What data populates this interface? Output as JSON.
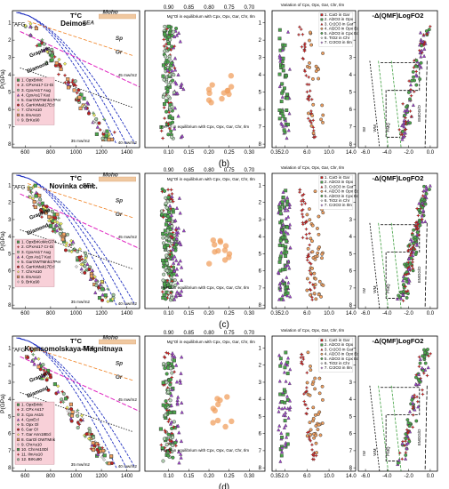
{
  "figure": {
    "captions": [
      "(b)",
      "(c)",
      "(d)"
    ],
    "colors": {
      "geotherm": "#2030c0",
      "garnet_green": "#4aa84a",
      "cpx_red": "#e01818",
      "opx_purple": "#a040d0",
      "orange": "#f0a060",
      "moho": "#f0c8a0",
      "legend_bg": "#f8d0d8",
      "legend2_bg": "#fff6b0"
    }
  },
  "chart_data": [
    {
      "type": "scatter",
      "panel": "b",
      "site": "Deimos",
      "charts": [
        {
          "name": "geotherm",
          "title": "T°C",
          "xlabel": "",
          "ylabel": "P(GPa)",
          "x_ticks": [
            "600",
            "800",
            "1000",
            "1200",
            "1400"
          ],
          "y_ticks": [
            "1",
            "2",
            "3",
            "4",
            "5",
            "6",
            "7",
            "8"
          ],
          "xlim": [
            500,
            1500
          ],
          "ylim": [
            8.2,
            0.3
          ],
          "labels": [
            "AFG",
            "Moho",
            "SEA",
            "Sp",
            "Gr",
            "Graphite",
            "Diamond",
            "45 mw/m2",
            "35 mw/m2",
            "40 mw/m2"
          ],
          "legend": [
            "1. OpxBrMc",
            "2. CPxAs17 Cr-Di",
            "3. CpxAs17 Aug",
            "4. CpxAs17 Kat",
            "5. GarOWTMnk17Per",
            "6. GarKrMak17Ecl",
            "7. ChrAs10",
            "8. IlmAs10",
            "9. BrKu90"
          ]
        },
        {
          "name": "mg-fe",
          "title": "Mg\"Ol in equilibrium with Cpx, Opx, Gar, Chr, Ilm",
          "xlabel": "Fe#Ol in equilibrium with Cpx, Opx, Gar, Chr, Ilm",
          "top_ticks": [
            "0.90",
            "0.85",
            "0.80",
            "0.75",
            "0.70"
          ],
          "x_ticks": [
            "0.10",
            "0.15",
            "0.20",
            "0.25",
            "0.30"
          ],
          "xlim": [
            0.05,
            0.33
          ],
          "ylim": [
            8.2,
            0.3
          ]
        },
        {
          "name": "variation",
          "title": "Variation of Cpx, Opx, Gar, Chr, Ilm",
          "x_ticks": [
            "0.35",
            "2.0",
            "6.0",
            "10.0",
            "14.0"
          ],
          "xlim": [
            0,
            14.5
          ],
          "ylim": [
            8.2,
            0.3
          ],
          "legend": [
            "1. CaO in Gar",
            "2. Al2O3 in Opx",
            "3. Cr2O3 in Gar",
            "4. Al2O3 in Opx Ecl",
            "5. Al2O3 in Cpx Ecl",
            "6. TiO2 in Chr",
            "7. Cr2O3 in Ilm"
          ]
        },
        {
          "name": "logfo2",
          "title": "-Δ(QMF)LogFO2",
          "x_ticks": [
            "-6.0",
            "-4.0",
            "-2.0",
            "0.0"
          ],
          "xlim": [
            -6.5,
            0.5
          ],
          "ylim": [
            8.2,
            0.3
          ],
          "labels": [
            "EMOG/D",
            "IW",
            "WM",
            "FMQ"
          ]
        }
      ]
    },
    {
      "type": "scatter",
      "panel": "c",
      "site": "Novinka conc.",
      "charts": [
        {
          "name": "geotherm",
          "title": "T°C",
          "xlabel": "",
          "ylabel": "P(GPa)",
          "x_ticks": [
            "600",
            "800",
            "1000",
            "1200",
            "1400"
          ],
          "y_ticks": [
            "1",
            "2",
            "3",
            "4",
            "5",
            "6",
            "7",
            "8"
          ],
          "xlim": [
            500,
            1500
          ],
          "ylim": [
            8.2,
            0.3
          ],
          "labels": [
            "AFG",
            "Moho",
            "SEA",
            "Sp",
            "Gr",
            "Graphite",
            "Diamond",
            "45 mw/m2",
            "35 mw/m2",
            "40 mw/m2"
          ],
          "legend": [
            "1. OpxBrKoMcGl74",
            "2. CPxAs17 Cr-Di",
            "3. CpxAs17 Aug",
            "4. Cpx As17 Kat",
            "5. GarOWTMnk17Per",
            "6. GarKrMak17Ecl",
            "7. ChrAs10",
            "8. IlmAs10",
            "9. BrKu90"
          ]
        },
        {
          "name": "mg-fe",
          "title": "Mg\"Ol in equilibrium with Cpx, Opx, Gar, Chr, Ilm",
          "xlabel": "Fe#Ol in equilibrium with Cpx, Opx, Gar, Chr, Ilm",
          "top_ticks": [
            "0.90",
            "0.85",
            "0.80",
            "0.75",
            "0.70"
          ],
          "x_ticks": [
            "0.10",
            "0.15",
            "0.20",
            "0.25",
            "0.30"
          ],
          "xlim": [
            0.05,
            0.33
          ],
          "ylim": [
            8.2,
            0.3
          ]
        },
        {
          "name": "variation",
          "title": "Variation of Cpx, Opx, Gar, Chr, Ilm",
          "x_ticks": [
            "0.35",
            "2.0",
            "6.0",
            "10.0",
            "14.0"
          ],
          "xlim": [
            0,
            14.5
          ],
          "ylim": [
            8.2,
            0.3
          ],
          "legend": [
            "1. CaO in Gar",
            "2. Al2O3 in Opx",
            "3. Cr2O3 in Gar",
            "4. Al2O3 in Opx Ecl",
            "5. Al2O3 in Cpx Ecl",
            "6. TiO2 in Chr",
            "7. Cr2O3 in Ilm"
          ]
        },
        {
          "name": "logfo2",
          "title": "-Δ(QMF)LogFO2",
          "x_ticks": [
            "-6.0",
            "-4.0",
            "-2.0",
            "0.0"
          ],
          "xlim": [
            -6.5,
            0.5
          ],
          "ylim": [
            8.2,
            0.3
          ],
          "labels": [
            "EMOG/D",
            "IW",
            "WM",
            "FMQ"
          ]
        }
      ]
    },
    {
      "type": "scatter",
      "panel": "d",
      "site": "Komsomolskaya-Magnitnaya",
      "charts": [
        {
          "name": "geotherm",
          "title": "T°C",
          "xlabel": "",
          "ylabel": "P(GPa)",
          "x_ticks": [
            "600",
            "800",
            "1000",
            "1200",
            "1400"
          ],
          "y_ticks": [
            "1",
            "2",
            "3",
            "4",
            "5",
            "6",
            "7",
            "8"
          ],
          "xlim": [
            500,
            1500
          ],
          "ylim": [
            8.2,
            0.3
          ],
          "labels": [
            "AFG",
            "Moho",
            "SEA",
            "Sp",
            "Gr",
            "Graphite",
            "Diamond",
            "45 mw/m2",
            "35 mw/m2",
            "40 mw/m2"
          ],
          "legend": [
            "1. OpxBrMc",
            "2. CPx As17",
            "3. Cpx As15",
            "4. CpxEcl",
            "5. Opx Ol",
            "6. Gar Ol",
            "7. Gar Ann18Ecl",
            "8. GarOl OWTMnk",
            "9. ChrAs10",
            "10. ChrAs10Dl",
            "11. IlmAs10",
            "12. BrKu90"
          ]
        },
        {
          "name": "mg-fe",
          "title": "Mg\"Ol in equilibrium with Cpx, Opx, Gar, Chr, Ilm",
          "xlabel": "Fe#Ol in equilibrium with Cpx, Opx, Gar, Chr, Ilm",
          "top_ticks": [
            "0.90",
            "0.85",
            "0.80",
            "0.75",
            "0.70"
          ],
          "x_ticks": [
            "0.10",
            "0.15",
            "0.20",
            "0.25",
            "0.30"
          ],
          "xlim": [
            0.05,
            0.33
          ],
          "ylim": [
            8.2,
            0.3
          ]
        },
        {
          "name": "variation",
          "title": "Variation of Cpx, Opx, Gar, Chr, Ilm",
          "x_ticks": [
            "0.35",
            "2.0",
            "6.0",
            "10.0",
            "14.0"
          ],
          "xlim": [
            0,
            14.5
          ],
          "ylim": [
            8.2,
            0.3
          ],
          "legend": [
            "1. CaO in Gar",
            "2. Al2O3 in Opx",
            "3. Cr2O3 in Gar",
            "4. Al2O3 in Opx Ecl",
            "5. Al2O3 in Cpx Ecl",
            "6. TiO2 in Chr",
            "7. Cr2O3 in Ilm"
          ]
        },
        {
          "name": "logfo2",
          "title": "-Δ(QMF)LogFO2",
          "x_ticks": [
            "-6.0",
            "-4.0",
            "-2.0",
            "0.0"
          ],
          "xlim": [
            -6.5,
            0.5
          ],
          "ylim": [
            8.2,
            0.3
          ],
          "labels": [
            "EMOG/D",
            "IW",
            "WM",
            "FMQ"
          ]
        }
      ]
    }
  ]
}
